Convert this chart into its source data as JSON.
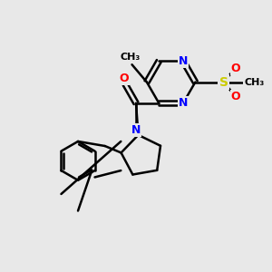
{
  "background_color": "#e8e8e8",
  "bond_color": "#000000",
  "bond_width": 1.8,
  "atom_colors": {
    "N": "#0000ff",
    "O": "#ff0000",
    "S": "#cccc00",
    "C": "#000000"
  },
  "font_size_atom": 9,
  "fig_size": [
    3.0,
    3.0
  ],
  "dpi": 100
}
